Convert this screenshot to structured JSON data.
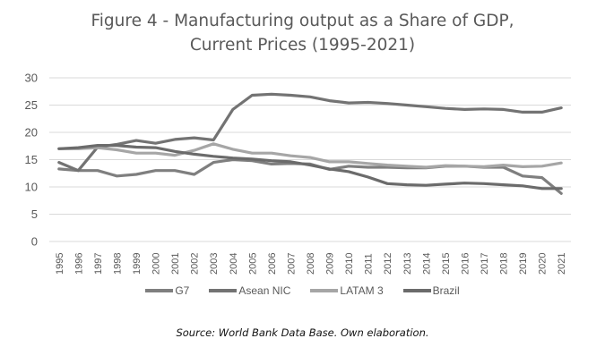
{
  "chart_data": {
    "type": "line",
    "title": "Figure 4 - Manufacturing output as a Share of  GDP, Current Prices (1995-2021)",
    "title_lines": [
      "Figure 4 - Manufacturing output as a Share of  GDP,",
      "Current Prices (1995-2021)"
    ],
    "xlabel": "",
    "ylabel": "",
    "ylim": [
      0,
      30
    ],
    "yticks": [
      0,
      5,
      10,
      15,
      20,
      25,
      30
    ],
    "grid": true,
    "legend_position": "bottom",
    "x": [
      "1995",
      "1996",
      "1997",
      "1998",
      "1999",
      "2000",
      "2001",
      "2002",
      "2003",
      "2004",
      "2005",
      "2006",
      "2007",
      "2008",
      "2009",
      "2010",
      "2011",
      "2012",
      "2013",
      "2014",
      "2015",
      "2016",
      "2017",
      "2018",
      "2019",
      "2020",
      "2021"
    ],
    "series": [
      {
        "name": "G7",
        "color": "#7f7f7f",
        "values": [
          13.3,
          13.0,
          13.0,
          12.0,
          12.3,
          13.0,
          13.0,
          12.3,
          14.5,
          15.0,
          14.8,
          14.2,
          14.3,
          14.2,
          13.2,
          13.8,
          13.6,
          13.6,
          13.5,
          13.5,
          13.8,
          13.8,
          13.6,
          13.6,
          12.0,
          11.7,
          8.8
        ]
      },
      {
        "name": "Asean NIC",
        "color": "#737373",
        "values": [
          14.5,
          13.0,
          17.3,
          17.8,
          18.5,
          18.0,
          18.7,
          19.0,
          18.6,
          24.2,
          26.8,
          27.0,
          26.8,
          26.5,
          25.8,
          25.4,
          25.5,
          25.3,
          25.0,
          24.7,
          24.4,
          24.2,
          24.3,
          24.2,
          23.7,
          23.7,
          24.5
        ]
      },
      {
        "name": "LATAM 3",
        "color": "#a6a6a6",
        "values": [
          17.0,
          17.0,
          17.2,
          16.8,
          16.2,
          16.2,
          15.8,
          16.7,
          17.9,
          16.9,
          16.2,
          16.2,
          15.7,
          15.4,
          14.6,
          14.6,
          14.3,
          14.0,
          13.8,
          13.6,
          13.9,
          13.8,
          13.7,
          14.0,
          13.7,
          13.8,
          14.4
        ]
      },
      {
        "name": "Brazil",
        "color": "#6b6b6b",
        "values": [
          17.0,
          17.2,
          17.6,
          17.6,
          17.3,
          17.2,
          16.5,
          16.0,
          15.6,
          15.3,
          15.1,
          14.8,
          14.6,
          14.0,
          13.3,
          12.8,
          11.8,
          10.6,
          10.4,
          10.3,
          10.5,
          10.7,
          10.6,
          10.4,
          10.2,
          9.7,
          9.7
        ]
      }
    ],
    "source": "Source: World Bank Data Base. Own elaboration."
  }
}
